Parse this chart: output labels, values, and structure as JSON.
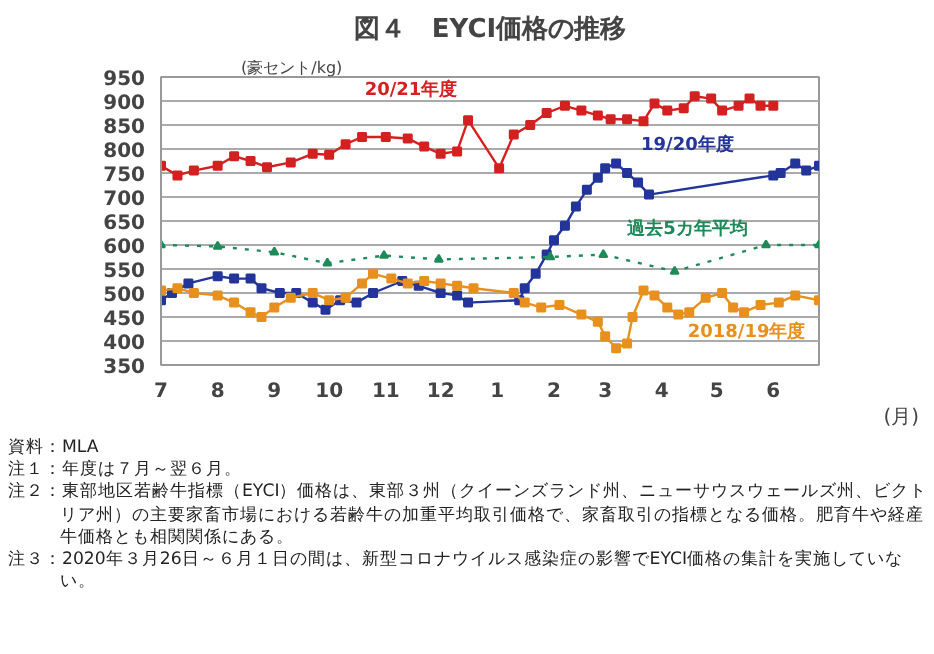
{
  "chart_data": {
    "type": "line",
    "title": "図４　EYCI価格の推移",
    "ylabel": "(豪セント/kg)",
    "xlabel": "(月)",
    "xlim": [
      "2020-07-01",
      "2021-06-26"
    ],
    "ylim": [
      350,
      950
    ],
    "xticks": [
      {
        "value": "2020-07-01",
        "label": "7"
      },
      {
        "value": "2020-08-01",
        "label": "8"
      },
      {
        "value": "2020-09-01",
        "label": "9"
      },
      {
        "value": "2020-10-01",
        "label": "10"
      },
      {
        "value": "2020-11-01",
        "label": "11"
      },
      {
        "value": "2020-12-01",
        "label": "12"
      },
      {
        "value": "2021-01-01",
        "label": "1"
      },
      {
        "value": "2021-02-01",
        "label": "2"
      },
      {
        "value": "2021-03-01",
        "label": "3"
      },
      {
        "value": "2021-04-01",
        "label": "4"
      },
      {
        "value": "2021-05-01",
        "label": "5"
      },
      {
        "value": "2021-06-01",
        "label": "6"
      }
    ],
    "yticks": [
      350,
      400,
      450,
      500,
      550,
      600,
      650,
      700,
      750,
      800,
      850,
      900,
      950
    ],
    "grid": "y",
    "marker": "square",
    "series": [
      {
        "name": "20/21年度",
        "color": "#d42020",
        "x": [
          "2020-07-01",
          "2020-07-10",
          "2020-07-19",
          "2020-08-01",
          "2020-08-10",
          "2020-08-19",
          "2020-08-28",
          "2020-09-10",
          "2020-09-22",
          "2020-10-01",
          "2020-10-10",
          "2020-10-19",
          "2020-11-01",
          "2020-11-13",
          "2020-11-22",
          "2020-12-01",
          "2020-12-10",
          "2020-12-16",
          "2021-01-02",
          "2021-01-10",
          "2021-01-19",
          "2021-01-28",
          "2021-02-07",
          "2021-02-16",
          "2021-02-25",
          "2021-03-04",
          "2021-03-13",
          "2021-03-22",
          "2021-03-28",
          "2021-04-04",
          "2021-04-13",
          "2021-04-19",
          "2021-04-28",
          "2021-05-04",
          "2021-05-13",
          "2021-05-19",
          "2021-05-25",
          "2021-06-01"
        ],
        "values": [
          765,
          745,
          755,
          765,
          785,
          775,
          762,
          772,
          790,
          788,
          810,
          825,
          825,
          822,
          805,
          790,
          795,
          860,
          760,
          830,
          850,
          875,
          890,
          880,
          870,
          862,
          862,
          858,
          895,
          880,
          885,
          910,
          905,
          880,
          890,
          905,
          890,
          890
        ]
      },
      {
        "name": "19/20年度",
        "color": "#23349a",
        "x": [
          "2020-07-01",
          "2020-07-07",
          "2020-07-16",
          "2020-08-01",
          "2020-08-10",
          "2020-08-19",
          "2020-08-25",
          "2020-09-04",
          "2020-09-13",
          "2020-09-22",
          "2020-09-29",
          "2020-10-07",
          "2020-10-16",
          "2020-10-25",
          "2020-11-10",
          "2020-11-19",
          "2020-12-01",
          "2020-12-10",
          "2020-12-16",
          "2021-01-13",
          "2021-01-16",
          "2021-01-22",
          "2021-01-28",
          "2021-02-01",
          "2021-02-07",
          "2021-02-13",
          "2021-02-19",
          "2021-02-25",
          "2021-03-01",
          "2021-03-07",
          "2021-03-13",
          "2021-03-19",
          "2021-03-25",
          "2021-06-01",
          "2021-06-05",
          "2021-06-13",
          "2021-06-19",
          "2021-06-26"
        ],
        "values": [
          485,
          500,
          520,
          535,
          530,
          530,
          510,
          500,
          500,
          480,
          465,
          485,
          480,
          500,
          525,
          515,
          500,
          495,
          480,
          485,
          510,
          540,
          580,
          610,
          640,
          680,
          715,
          740,
          760,
          770,
          750,
          730,
          705,
          745,
          750,
          770,
          755,
          765
        ]
      },
      {
        "name": "2018/19年度",
        "color": "#e8901e",
        "x": [
          "2020-07-01",
          "2020-07-10",
          "2020-07-19",
          "2020-08-01",
          "2020-08-10",
          "2020-08-19",
          "2020-08-25",
          "2020-09-01",
          "2020-09-10",
          "2020-09-22",
          "2020-10-01",
          "2020-10-10",
          "2020-10-19",
          "2020-10-25",
          "2020-11-04",
          "2020-11-13",
          "2020-11-22",
          "2020-12-01",
          "2020-12-10",
          "2020-12-19",
          "2021-01-10",
          "2021-01-16",
          "2021-01-25",
          "2021-02-04",
          "2021-02-16",
          "2021-02-25",
          "2021-03-01",
          "2021-03-07",
          "2021-03-13",
          "2021-03-16",
          "2021-03-22",
          "2021-03-28",
          "2021-04-04",
          "2021-04-10",
          "2021-04-16",
          "2021-04-25",
          "2021-05-04",
          "2021-05-10",
          "2021-05-16",
          "2021-05-25",
          "2021-06-04",
          "2021-06-13",
          "2021-06-26"
        ],
        "values": [
          505,
          510,
          500,
          495,
          480,
          460,
          450,
          470,
          490,
          500,
          485,
          490,
          520,
          540,
          530,
          520,
          525,
          520,
          515,
          510,
          500,
          480,
          470,
          475,
          455,
          440,
          410,
          385,
          395,
          450,
          505,
          495,
          470,
          455,
          460,
          490,
          500,
          470,
          460,
          475,
          480,
          495,
          485
        ]
      },
      {
        "name": "過去5カ年平均",
        "color": "#1e8a5a",
        "marker": "triangle",
        "line_style": "dotted",
        "x": [
          "2020-07-01",
          "2020-08-01",
          "2020-09-01",
          "2020-09-30",
          "2020-10-31",
          "2020-11-30",
          "2021-01-30",
          "2021-02-28",
          "2021-04-08",
          "2021-05-28",
          "2021-06-26"
        ],
        "values": [
          600,
          597,
          585,
          562,
          578,
          570,
          575,
          580,
          545,
          600,
          600
        ]
      }
    ],
    "annotations": [
      "資料：MLA",
      "注１：年度は７月～翌６月。",
      "注２：東部地区若齢牛指標（EYCI）価格は、東部３州（クイーンズランド州、ニューサウスウェールズ州、ビクトリア州）の主要家畜市場における若齢牛の加重平均取引価格で、家畜取引の指標となる価格。肥育牛や経産牛価格とも相関関係にある。",
      "注３：2020年３月26日～６月１日の間は、新型コロナウイルス感染症の影響でEYCI価格の集計を実施していない。"
    ]
  }
}
